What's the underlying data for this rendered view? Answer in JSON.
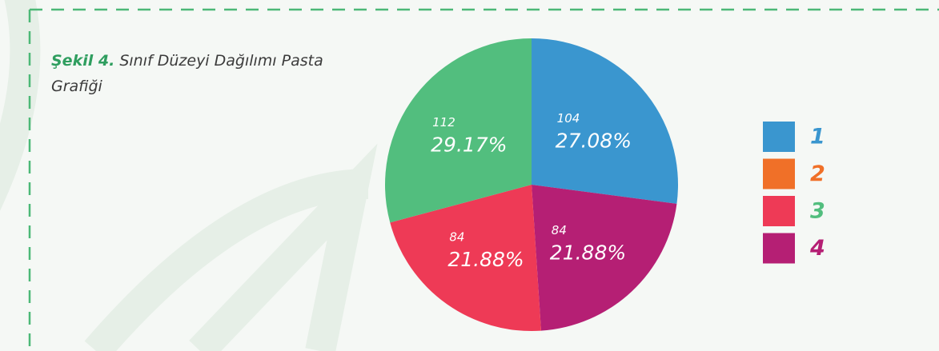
{
  "chart_data": {
    "type": "pie",
    "figure_label": "Şekil 4.",
    "title": "Sınıf Düzeyi Dağılımı Pasta Grafiği",
    "values": [
      104,
      84,
      84,
      112
    ],
    "percents": [
      27.08,
      21.88,
      21.88,
      29.17
    ],
    "value_labels": [
      "27.08%",
      "21.88%",
      "21.88%",
      "29.17%"
    ],
    "colors": [
      "#3a96cf",
      "#b51f74",
      "#ee3a56",
      "#52be7e"
    ],
    "legend": {
      "names": [
        "1",
        "2",
        "3",
        "4"
      ],
      "swatch_colors": [
        "#3a96cf",
        "#f07028",
        "#ee3a56",
        "#b51f74"
      ],
      "text_colors": [
        "#3a96cf",
        "#f07028",
        "#52be7e",
        "#b51f74"
      ]
    }
  }
}
